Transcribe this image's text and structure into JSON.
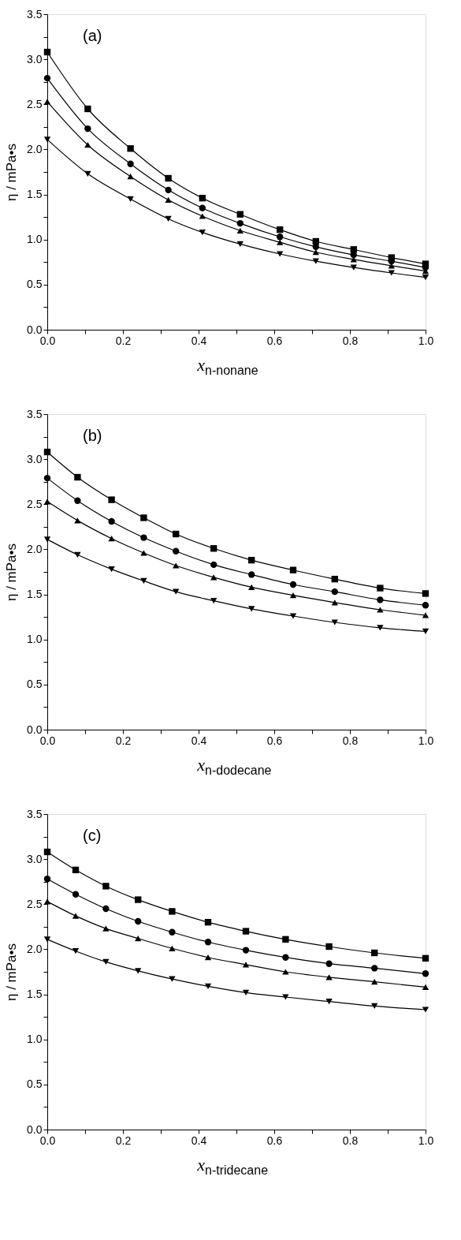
{
  "chart_data": [
    {
      "type": "line",
      "xlabel": "x$_{n-nonane}$",
      "ylabel": "η / mPa•s",
      "annotations": [
        "(a)"
      ],
      "grid": false,
      "line_style": "solid",
      "xlim": [
        0,
        1
      ],
      "ylim": [
        0,
        3.5
      ],
      "xticks": [
        {
          "value": 0,
          "label": "0.0"
        },
        {
          "value": 0.1,
          "label": null
        },
        0.2,
        {
          "value": 0.3,
          "label": null
        },
        0.4,
        {
          "value": 0.5,
          "label": null
        },
        0.6,
        {
          "value": 0.7,
          "label": null
        },
        0.8,
        {
          "value": 0.9,
          "label": null
        },
        {
          "value": 1,
          "label": "1.0"
        }
      ],
      "yticks": [
        {
          "value": 0,
          "label": "0.0"
        },
        {
          "value": 0.25,
          "label": null
        },
        0.5,
        {
          "value": 0.75,
          "label": null
        },
        {
          "value": 1,
          "label": "1.0"
        },
        {
          "value": 1.25,
          "label": null
        },
        1.5,
        {
          "value": 1.75,
          "label": null
        },
        {
          "value": 2,
          "label": "2.0"
        },
        {
          "value": 2.25,
          "label": null
        },
        2.5,
        {
          "value": 2.75,
          "label": null
        },
        {
          "value": 3,
          "label": "3.0"
        },
        {
          "value": 3.25,
          "label": null
        },
        3.5
      ],
      "x": [
        0,
        0.107,
        0.22,
        0.32,
        0.41,
        0.51,
        0.615,
        0.71,
        0.81,
        0.91,
        1.0
      ],
      "series": [
        {
          "color": "#000000",
          "marker": "square",
          "values": [
            3.08,
            2.45,
            2.01,
            1.68,
            1.46,
            1.28,
            1.11,
            0.98,
            0.89,
            0.8,
            0.73
          ]
        },
        {
          "color": "#000000",
          "marker": "circle",
          "values": [
            2.79,
            2.23,
            1.84,
            1.55,
            1.35,
            1.18,
            1.03,
            0.92,
            0.83,
            0.76,
            0.69
          ]
        },
        {
          "color": "#000000",
          "marker": "triangle",
          "values": [
            2.53,
            2.05,
            1.7,
            1.44,
            1.26,
            1.1,
            0.97,
            0.86,
            0.78,
            0.71,
            0.65
          ]
        },
        {
          "color": "#000000",
          "marker": "triangle-down",
          "values": [
            2.11,
            1.73,
            1.45,
            1.23,
            1.08,
            0.95,
            0.84,
            0.76,
            0.69,
            0.63,
            0.58
          ]
        }
      ]
    },
    {
      "type": "line",
      "xlabel": "x$_{n-dodecane}$",
      "ylabel": "η / mPa•s",
      "annotations": [
        "(b)"
      ],
      "grid": false,
      "line_style": "solid",
      "xlim": [
        0,
        1
      ],
      "ylim": [
        0,
        3.5
      ],
      "xticks": [
        {
          "value": 0,
          "label": "0.0"
        },
        {
          "value": 0.1,
          "label": null
        },
        0.2,
        {
          "value": 0.3,
          "label": null
        },
        0.4,
        {
          "value": 0.5,
          "label": null
        },
        0.6,
        {
          "value": 0.7,
          "label": null
        },
        0.8,
        {
          "value": 0.9,
          "label": null
        },
        {
          "value": 1,
          "label": "1.0"
        }
      ],
      "yticks": [
        {
          "value": 0,
          "label": "0.0"
        },
        {
          "value": 0.25,
          "label": null
        },
        0.5,
        {
          "value": 0.75,
          "label": null
        },
        {
          "value": 1,
          "label": "1.0"
        },
        {
          "value": 1.25,
          "label": null
        },
        1.5,
        {
          "value": 1.75,
          "label": null
        },
        {
          "value": 2,
          "label": "2.0"
        },
        {
          "value": 2.25,
          "label": null
        },
        2.5,
        {
          "value": 2.75,
          "label": null
        },
        {
          "value": 3,
          "label": "3.0"
        },
        {
          "value": 3.25,
          "label": null
        },
        3.5
      ],
      "x": [
        0,
        0.08,
        0.17,
        0.255,
        0.34,
        0.44,
        0.54,
        0.65,
        0.76,
        0.88,
        1.0
      ],
      "series": [
        {
          "color": "#000000",
          "marker": "square",
          "values": [
            3.08,
            2.8,
            2.55,
            2.35,
            2.17,
            2.01,
            1.88,
            1.77,
            1.67,
            1.57,
            1.51
          ]
        },
        {
          "color": "#000000",
          "marker": "circle",
          "values": [
            2.79,
            2.54,
            2.31,
            2.13,
            1.98,
            1.83,
            1.72,
            1.61,
            1.53,
            1.44,
            1.38
          ]
        },
        {
          "color": "#000000",
          "marker": "triangle",
          "values": [
            2.53,
            2.32,
            2.12,
            1.96,
            1.82,
            1.69,
            1.58,
            1.49,
            1.41,
            1.33,
            1.27
          ]
        },
        {
          "color": "#000000",
          "marker": "triangle-down",
          "values": [
            2.11,
            1.94,
            1.78,
            1.65,
            1.53,
            1.43,
            1.34,
            1.26,
            1.19,
            1.13,
            1.09
          ]
        }
      ]
    },
    {
      "type": "line",
      "xlabel": "x$_{n-tridecane}$",
      "ylabel": "η / mPa•s",
      "annotations": [
        "(c)"
      ],
      "grid": false,
      "line_style": "solid",
      "xlim": [
        0,
        1
      ],
      "ylim": [
        0,
        3.5
      ],
      "xticks": [
        {
          "value": 0,
          "label": "0.0"
        },
        {
          "value": 0.1,
          "label": null
        },
        0.2,
        {
          "value": 0.3,
          "label": null
        },
        0.4,
        {
          "value": 0.5,
          "label": null
        },
        0.6,
        {
          "value": 0.7,
          "label": null
        },
        0.8,
        {
          "value": 0.9,
          "label": null
        },
        {
          "value": 1,
          "label": "1.0"
        }
      ],
      "yticks": [
        {
          "value": 0,
          "label": "0.0"
        },
        {
          "value": 0.25,
          "label": null
        },
        0.5,
        {
          "value": 0.75,
          "label": null
        },
        {
          "value": 1,
          "label": "1.0"
        },
        {
          "value": 1.25,
          "label": null
        },
        1.5,
        {
          "value": 1.75,
          "label": null
        },
        {
          "value": 2,
          "label": "2.0"
        },
        {
          "value": 2.25,
          "label": null
        },
        2.5,
        {
          "value": 2.75,
          "label": null
        },
        {
          "value": 3,
          "label": "3.0"
        },
        {
          "value": 3.25,
          "label": null
        },
        3.5
      ],
      "x": [
        0,
        0.075,
        0.155,
        0.24,
        0.33,
        0.425,
        0.525,
        0.63,
        0.745,
        0.865,
        1.0
      ],
      "series": [
        {
          "color": "#000000",
          "marker": "square",
          "values": [
            3.08,
            2.88,
            2.7,
            2.55,
            2.42,
            2.3,
            2.2,
            2.11,
            2.03,
            1.96,
            1.9
          ]
        },
        {
          "color": "#000000",
          "marker": "circle",
          "values": [
            2.78,
            2.61,
            2.45,
            2.31,
            2.19,
            2.08,
            1.99,
            1.91,
            1.84,
            1.79,
            1.73
          ]
        },
        {
          "color": "#000000",
          "marker": "triangle",
          "values": [
            2.53,
            2.37,
            2.23,
            2.12,
            2.01,
            1.91,
            1.83,
            1.75,
            1.69,
            1.64,
            1.58
          ]
        },
        {
          "color": "#000000",
          "marker": "triangle-down",
          "values": [
            2.11,
            1.98,
            1.86,
            1.76,
            1.67,
            1.59,
            1.52,
            1.47,
            1.42,
            1.37,
            1.33
          ]
        }
      ]
    }
  ]
}
